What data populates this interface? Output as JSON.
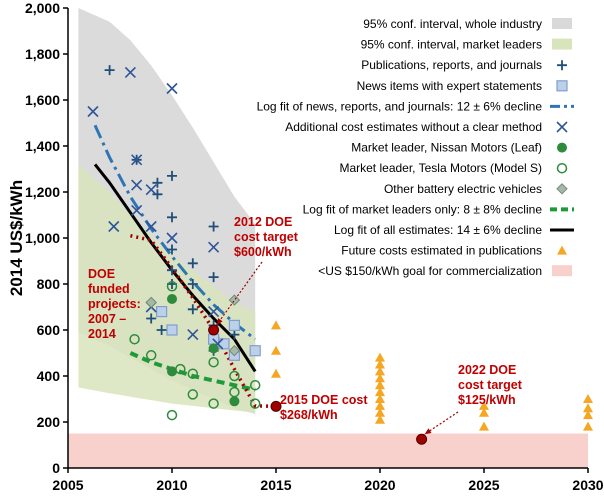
{
  "chart_data": {
    "type": "scatter",
    "title": "",
    "xlabel": "",
    "ylabel": "2014 US$/kWh",
    "xlim": [
      2005,
      2030
    ],
    "ylim": [
      0,
      2000
    ],
    "xticks": [
      "2005",
      "2010",
      "2015",
      "2020",
      "2025",
      "2030"
    ],
    "yticks": [
      "0",
      "200",
      "400",
      "600",
      "800",
      "1,000",
      "1,200",
      "1,400",
      "1,600",
      "1,800",
      "2,000"
    ],
    "grid": false,
    "legend_position": "top-right",
    "colors": {
      "industry_band": "#d9d9d9",
      "leaders_band": "#d8e4bc",
      "publications": "#1f4e79",
      "news": "#7f9fcf",
      "log_fit_news": "#2e75b6",
      "cost_estimates": "#2e5597",
      "leaf": "#2e8b3c",
      "tesla": "#2e8b3c",
      "other_bev": "#6e8b74",
      "leaders_fit": "#1e9a39",
      "all_fit": "#a00000",
      "future": "#f5a623",
      "goal_band": "#f9d1cc",
      "annotation": "#c00000"
    },
    "legend": [
      {
        "key": "industry_band",
        "label": "95% conf. interval, whole industry",
        "marker": "band-gray"
      },
      {
        "key": "leaders_band",
        "label": "95% conf. interval, market leaders",
        "marker": "band-green"
      },
      {
        "key": "publications",
        "label": "Publications, reports, and journals",
        "marker": "plus"
      },
      {
        "key": "news",
        "label": "News items with expert statements",
        "marker": "square"
      },
      {
        "key": "log_fit_news",
        "label": "Log fit of news, reports, and journals: 12 ± 6% decline",
        "marker": "dashdot"
      },
      {
        "key": "cost_estimates",
        "label": "Additional cost estimates without a clear method",
        "marker": "x"
      },
      {
        "key": "leaf",
        "label": "Market leader, Nissan Motors (Leaf)",
        "marker": "filled-circle"
      },
      {
        "key": "tesla",
        "label": "Market leader, Tesla Motors (Model S)",
        "marker": "open-circle"
      },
      {
        "key": "other_bev",
        "label": "Other battery electric vehicles",
        "marker": "diamond"
      },
      {
        "key": "leaders_fit",
        "label": "Log fit of market leaders only: 8 ± 8% decline",
        "marker": "dash-green"
      },
      {
        "key": "all_fit",
        "label": "Log fit of all estimates: 14 ± 6% decline",
        "marker": "solid-black"
      },
      {
        "key": "future",
        "label": "Future costs estimated in publications",
        "marker": "triangle"
      },
      {
        "key": "goal_band",
        "label": "<US $150/kWh goal for commercialization",
        "marker": "band-pink"
      }
    ],
    "bands": {
      "industry": {
        "upper": [
          [
            2005.5,
            2000
          ],
          [
            2007,
            1940
          ],
          [
            2008,
            1860
          ],
          [
            2009,
            1750
          ],
          [
            2010,
            1620
          ],
          [
            2011,
            1480
          ],
          [
            2012,
            1330
          ],
          [
            2013,
            1180
          ],
          [
            2014,
            1060
          ]
        ],
        "lower": [
          [
            2005.5,
            590
          ],
          [
            2007,
            530
          ],
          [
            2008,
            480
          ],
          [
            2009,
            430
          ],
          [
            2010,
            380
          ],
          [
            2011,
            340
          ],
          [
            2012,
            300
          ],
          [
            2013,
            260
          ],
          [
            2014,
            235
          ]
        ]
      },
      "leaders": {
        "upper": [
          [
            2005.5,
            1320
          ],
          [
            2007,
            1200
          ],
          [
            2008,
            1100
          ],
          [
            2009,
            1010
          ],
          [
            2010,
            930
          ],
          [
            2011,
            860
          ],
          [
            2012,
            790
          ],
          [
            2013,
            720
          ],
          [
            2014,
            680
          ]
        ],
        "lower": [
          [
            2005.5,
            350
          ],
          [
            2007,
            325
          ],
          [
            2008,
            310
          ],
          [
            2009,
            295
          ],
          [
            2010,
            280
          ],
          [
            2011,
            270
          ],
          [
            2012,
            260
          ],
          [
            2013,
            250
          ],
          [
            2014,
            240
          ]
        ]
      },
      "goal": {
        "ymin": 0,
        "ymax": 150
      }
    },
    "series": [
      {
        "name": "Publications, reports, and journals",
        "marker": "plus",
        "points": [
          [
            2007,
            1730
          ],
          [
            2008.3,
            1340
          ],
          [
            2009.3,
            1240
          ],
          [
            2009.3,
            1190
          ],
          [
            2010,
            1270
          ],
          [
            2010,
            1090
          ],
          [
            2010,
            950
          ],
          [
            2010,
            860
          ],
          [
            2010,
            800
          ],
          [
            2011,
            890
          ],
          [
            2011,
            800
          ],
          [
            2011,
            690
          ],
          [
            2012,
            1050
          ],
          [
            2012,
            830
          ],
          [
            2012,
            620
          ],
          [
            2012,
            510
          ],
          [
            2013,
            580
          ],
          [
            2013,
            500
          ],
          [
            2009,
            650
          ],
          [
            2009.5,
            600
          ]
        ]
      },
      {
        "name": "News items with expert statements",
        "marker": "square",
        "points": [
          [
            2009.5,
            680
          ],
          [
            2010,
            600
          ],
          [
            2012,
            560
          ],
          [
            2012.5,
            540
          ],
          [
            2013,
            620
          ],
          [
            2013,
            490
          ],
          [
            2014,
            510
          ]
        ]
      },
      {
        "name": "Additional cost estimates without a clear method",
        "marker": "x",
        "points": [
          [
            2006.2,
            1550
          ],
          [
            2008,
            1720
          ],
          [
            2008.3,
            1340
          ],
          [
            2008.3,
            1230
          ],
          [
            2008.3,
            1120
          ],
          [
            2009,
            1210
          ],
          [
            2009,
            1050
          ],
          [
            2010,
            1650
          ],
          [
            2010,
            1000
          ],
          [
            2007.2,
            1050
          ],
          [
            2009,
            700
          ],
          [
            2011,
            580
          ],
          [
            2012,
            960
          ],
          [
            2012,
            680
          ],
          [
            2012.2,
            540
          ]
        ]
      },
      {
        "name": "Market leader, Nissan Motors (Leaf)",
        "marker": "filled-circle",
        "points": [
          [
            2010,
            735
          ],
          [
            2010,
            420
          ],
          [
            2012,
            520
          ],
          [
            2013,
            290
          ]
        ]
      },
      {
        "name": "Market leader, Tesla Motors (Model S)",
        "marker": "open-circle",
        "points": [
          [
            2008.2,
            560
          ],
          [
            2009,
            490
          ],
          [
            2010,
            790
          ],
          [
            2010.4,
            430
          ],
          [
            2011,
            410
          ],
          [
            2011,
            320
          ],
          [
            2012,
            460
          ],
          [
            2012,
            280
          ],
          [
            2013,
            400
          ],
          [
            2013,
            330
          ],
          [
            2014,
            360
          ],
          [
            2014,
            280
          ],
          [
            2010,
            230
          ]
        ]
      },
      {
        "name": "Other battery electric vehicles",
        "marker": "diamond",
        "points": [
          [
            2009,
            720
          ],
          [
            2013,
            730
          ],
          [
            2013,
            510
          ]
        ]
      },
      {
        "name": "Future costs estimated in publications",
        "marker": "triangle",
        "points": [
          [
            2015,
            620
          ],
          [
            2015,
            510
          ],
          [
            2015,
            410
          ],
          [
            2020,
            480
          ],
          [
            2020,
            450
          ],
          [
            2020,
            420
          ],
          [
            2020,
            390
          ],
          [
            2020,
            360
          ],
          [
            2020,
            330
          ],
          [
            2020,
            300
          ],
          [
            2020,
            270
          ],
          [
            2020,
            240
          ],
          [
            2020,
            210
          ],
          [
            2025,
            270
          ],
          [
            2025,
            240
          ],
          [
            2025,
            180
          ],
          [
            2030,
            300
          ],
          [
            2030,
            260
          ],
          [
            2030,
            230
          ],
          [
            2030,
            180
          ]
        ]
      }
    ],
    "fits": {
      "log_fit_news": [
        [
          2006.3,
          1490
        ],
        [
          2007,
          1350
        ],
        [
          2008,
          1180
        ],
        [
          2009,
          1040
        ],
        [
          2010,
          920
        ],
        [
          2011,
          810
        ],
        [
          2012,
          710
        ],
        [
          2013,
          630
        ],
        [
          2014,
          560
        ]
      ],
      "leaders_fit": [
        [
          2008,
          500
        ],
        [
          2009,
          460
        ],
        [
          2010,
          430
        ],
        [
          2011,
          400
        ],
        [
          2012,
          380
        ],
        [
          2013,
          360
        ],
        [
          2014,
          340
        ]
      ],
      "all_fit": [
        [
          2006.3,
          1320
        ],
        [
          2007,
          1240
        ],
        [
          2008,
          1110
        ],
        [
          2009,
          980
        ],
        [
          2010,
          860
        ],
        [
          2011,
          750
        ],
        [
          2012,
          650
        ],
        [
          2013,
          560
        ],
        [
          2014,
          420
        ]
      ],
      "doe_dotted": [
        [
          2008,
          1010
        ],
        [
          2009,
          990
        ],
        [
          2010,
          870
        ],
        [
          2011,
          740
        ],
        [
          2012,
          600
        ],
        [
          2013,
          430
        ],
        [
          2014,
          270
        ],
        [
          2015,
          268
        ]
      ]
    },
    "targets": [
      {
        "name": "2012 DOE cost target $600/kWh",
        "x": 2012,
        "y": 600
      },
      {
        "name": "2015 DOE cost $268/kWh",
        "x": 2015,
        "y": 268
      },
      {
        "name": "2022 DOE cost target $125/kWh",
        "x": 2022,
        "y": 125
      }
    ],
    "annotations": {
      "doe_funded": [
        "DOE",
        "funded",
        "projects:",
        "2007 –",
        "2014"
      ],
      "target_2012": [
        "2012 DOE",
        "cost target",
        "$600/kWh"
      ],
      "cost_2015": [
        "2015 DOE cost",
        "$268/kWh"
      ],
      "target_2022": [
        "2022 DOE",
        "cost target",
        "$125/kWh"
      ]
    }
  }
}
